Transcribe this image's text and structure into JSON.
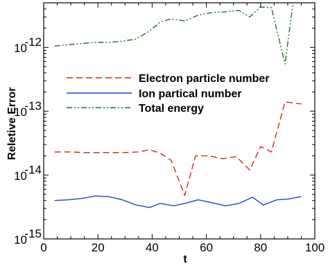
{
  "chart_data": {
    "type": "line",
    "xlabel": "t",
    "ylabel": "Reletive Error",
    "xlim": [
      0,
      100
    ],
    "ylim": [
      1e-15,
      5e-12
    ],
    "y_scale": "log",
    "x_ticks": [
      0,
      20,
      40,
      60,
      80,
      100
    ],
    "x_tick_labels": [
      "0",
      "20",
      "40",
      "60",
      "80",
      "100"
    ],
    "y_ticks": [
      1e-15,
      1e-14,
      1e-13,
      1e-12
    ],
    "y_tick_labels": [
      {
        "base": "10",
        "exp": "-15"
      },
      {
        "base": "10",
        "exp": "-14"
      },
      {
        "base": "10",
        "exp": "-13"
      },
      {
        "base": "10",
        "exp": "-12"
      }
    ],
    "grid": false,
    "legend_position": "center",
    "series": [
      {
        "name": "Electron particle number",
        "color": "#d62020",
        "dash": "dashed",
        "x": [
          4,
          10,
          15,
          20,
          25,
          30,
          35,
          39,
          43,
          47,
          52,
          56,
          61,
          66,
          71,
          76,
          80,
          84,
          89,
          95
        ],
        "y": [
          2.3e-14,
          2.3e-14,
          2.25e-14,
          2.25e-14,
          2.25e-14,
          2.25e-14,
          2.3e-14,
          2.5e-14,
          2.2e-14,
          1.7e-14,
          4.8e-15,
          2e-14,
          2e-14,
          1.8e-14,
          1.95e-14,
          1.2e-14,
          2.8e-14,
          2.3e-14,
          1.4e-13,
          1.3e-13
        ]
      },
      {
        "name": "Ion partical number",
        "color": "#2a3bd8",
        "dash": "solid",
        "x": [
          4,
          9,
          14,
          19,
          24,
          29,
          34,
          39,
          43,
          48,
          52,
          57,
          62,
          67,
          72,
          77,
          81,
          86,
          90,
          95
        ],
        "y": [
          4e-15,
          4.1e-15,
          4.3e-15,
          4.7e-15,
          4.6e-15,
          4.1e-15,
          3.4e-15,
          3.1e-15,
          3.6e-15,
          3.3e-15,
          3.6e-15,
          4.1e-15,
          3.7e-15,
          3.3e-15,
          3.6e-15,
          4.5e-15,
          3.4e-15,
          4.1e-15,
          4.2e-15,
          4.6e-15
        ]
      },
      {
        "name": "Total energy",
        "color": "#1f6b1f",
        "dash": "dashdotdot",
        "x": [
          4,
          9,
          14,
          19,
          24,
          29,
          34,
          39,
          43,
          47,
          52,
          57,
          62,
          67,
          72,
          76,
          80,
          84,
          89,
          92
        ],
        "y": [
          1.05e-12,
          1.1e-12,
          1.15e-12,
          1.2e-12,
          1.2e-12,
          1.25e-12,
          1.35e-12,
          1.8e-12,
          2.5e-12,
          2.8e-12,
          2.6e-12,
          3.2e-12,
          3.5e-12,
          3.6e-12,
          3.8e-12,
          3e-12,
          4.3e-12,
          4.2e-12,
          5.5e-13,
          5e-12
        ]
      }
    ]
  }
}
